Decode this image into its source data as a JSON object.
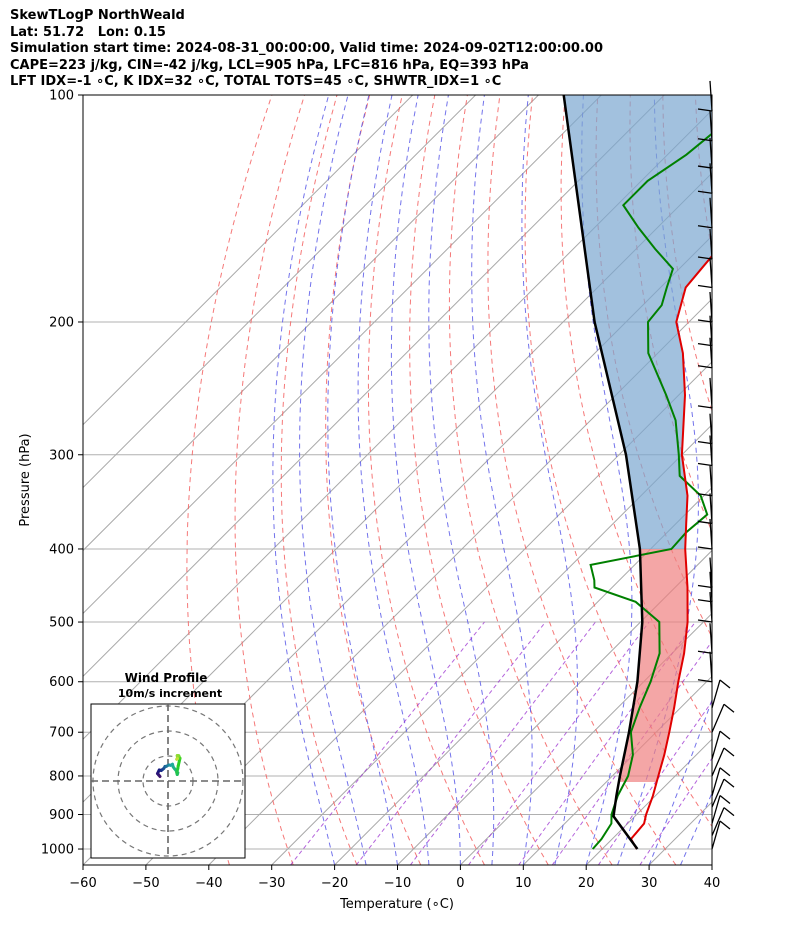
{
  "header": {
    "line1": "SkewTLogP NorthWeald",
    "line2": "Lat: 51.72   Lon: 0.15",
    "line3": "Simulation start time: 2024-08-31_00:00:00, Valid time: 2024-09-02T12:00:00.00",
    "line4": "CAPE=223 j/kg, CIN=-42 j/kg, LCL=905 hPa, LFC=816 hPa, EQ=393 hPa",
    "line5": "LFT IDX=-1 ∘C, K IDX=32 ∘C, TOTAL TOTS=45 ∘C, SHWTR_IDX=1 ∘C"
  },
  "chart_data": [
    {
      "type": "line",
      "subtype": "skew-t log-p",
      "xlabel": "Temperature (∘C)",
      "ylabel": "Pressure (hPa)",
      "xlim": [
        -60,
        40
      ],
      "ylim": [
        1050,
        100
      ],
      "y_scale": "log",
      "x_ticks": [
        "−60",
        "−50",
        "−40",
        "−30",
        "−20",
        "−10",
        "0",
        "10",
        "20",
        "30",
        "40"
      ],
      "y_ticks": [
        "100",
        "200",
        "300",
        "400",
        "500",
        "600",
        "700",
        "800",
        "900",
        "1000"
      ],
      "grid": true,
      "colors": {
        "temperature": "#e00000",
        "dewpoint": "#008000",
        "parcel": "#000000",
        "cape_fill": "#7ba7d0",
        "cin_fill": "#f08080",
        "dry_adiabat": "#f36060",
        "moist_adiabat": "#5a5ae8",
        "mixing_ratio": "#9b30d0",
        "isotherm": "#999999"
      },
      "series": [
        {
          "key": "temperature",
          "p": [
            1000,
            970,
            925,
            900,
            850,
            800,
            750,
            700,
            650,
            600,
            550,
            500,
            450,
            400,
            370,
            340,
            300,
            250,
            220,
            200,
            180,
            170,
            160,
            150,
            140,
            130,
            120,
            110,
            100
          ],
          "t": [
            25.5,
            23,
            22.6,
            21.5,
            19.6,
            17.3,
            14.9,
            12.1,
            9.0,
            5.5,
            1.9,
            -2.5,
            -8.0,
            -14.5,
            -18.4,
            -22.6,
            -30.0,
            -39.0,
            -46.0,
            -52.0,
            -56.0,
            -56.5,
            -57.0,
            -58.5,
            -61.5,
            -63.5,
            -63.2,
            -63.3,
            -64.0
          ]
        },
        {
          "key": "dewpoint",
          "p": [
            1000,
            970,
            925,
            900,
            850,
            800,
            750,
            700,
            650,
            600,
            550,
            500,
            470,
            450,
            440,
            420,
            400,
            380,
            360,
            340,
            320,
            300,
            270,
            250,
            220,
            200,
            190,
            180,
            170,
            160,
            150,
            140,
            130,
            120,
            110,
            100
          ],
          "t": [
            18.5,
            18.3,
            17.4,
            16.0,
            14.0,
            12.5,
            9.9,
            6.0,
            3.5,
            1.1,
            -2.0,
            -7.0,
            -14.0,
            -22.8,
            -24.0,
            -27.0,
            -16.7,
            -17.0,
            -16.5,
            -20.5,
            -27.0,
            -30.5,
            -36.5,
            -42.0,
            -51.5,
            -56.5,
            -57.0,
            -59.0,
            -61.0,
            -67.0,
            -73.0,
            -79.0,
            -79.0,
            -77.0,
            -76.0,
            -75.5
          ]
        },
        {
          "key": "parcel",
          "p": [
            1000,
            905,
            850,
            800,
            700,
            600,
            500,
            400,
            300,
            200,
            150,
            100
          ],
          "t": [
            25.6,
            16.6,
            13.8,
            11.2,
            5.7,
            -1.0,
            -9.7,
            -21.7,
            -38.9,
            -65.0,
            -82.0,
            -106.0
          ]
        }
      ],
      "wind_barbs": {
        "p": [
          1000,
          960,
          925,
          880,
          850,
          800,
          760,
          700,
          650,
          600,
          550,
          500,
          470,
          450,
          400,
          370,
          340,
          310,
          290,
          260,
          230,
          215,
          200,
          180,
          165,
          150,
          135,
          125,
          115,
          105
        ]
      },
      "inset": {
        "title": "Wind Profile",
        "subtitle": "10m/s increment",
        "rings": 3,
        "hodograph_u": [
          0.0,
          -0.5,
          -1.0,
          -0.6,
          -0.3,
          0.5,
          1.0,
          1.5,
          2.0,
          2.6,
          3.5,
          4.3,
          5.0,
          5.3,
          5.9,
          7.1,
          6.9,
          6.7,
          7.1,
          7.3,
          8.0,
          7.6,
          7.5,
          6.9,
          7.0,
          6.7,
          7.0
        ],
        "hodograph_v": [
          3.0,
          3.6,
          4.2,
          5.0,
          5.6,
          5.4,
          5.8,
          6.2,
          7.0,
          7.1,
          7.6,
          7.5,
          7.9,
          6.8,
          6.0,
          4.5,
          3.8,
          4.6,
          6.1,
          7.3,
          10.3,
          10.9,
          11.3,
          11.4,
          10.2,
          9.9,
          10.1
        ]
      }
    }
  ]
}
